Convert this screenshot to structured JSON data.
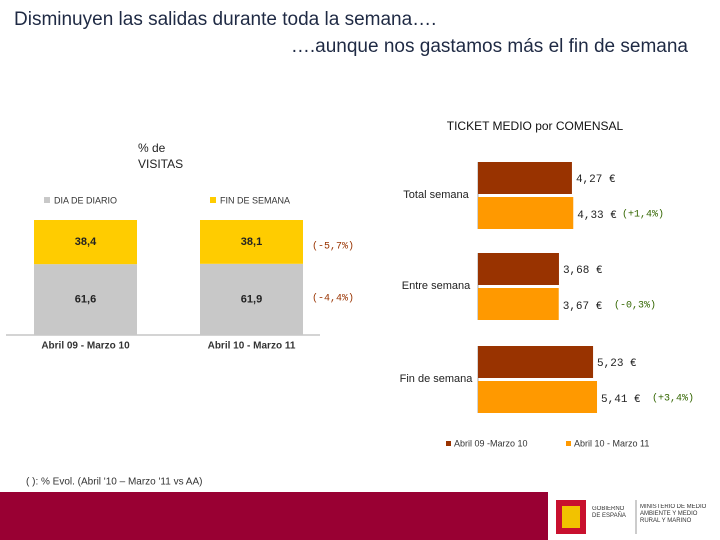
{
  "header": {
    "title_line1": "Disminuyen las salidas durante toda la semana….",
    "title_line2": "….aunque nos gastamos más el fin de semana"
  },
  "chart_data": [
    {
      "type": "stacked-bar",
      "axis_label": "% de VISITAS",
      "categories": [
        "Abril 09 - Marzo 10",
        "Abril 10 - Marzo 11"
      ],
      "ylim": [
        0,
        100
      ],
      "series": [
        {
          "name": "DIA DE DIARIO",
          "color": "#c8c8c8",
          "values": [
            61.6,
            61.9
          ],
          "value_labels": [
            "61,6",
            "61,9"
          ]
        },
        {
          "name": "FIN DE SEMANA",
          "color": "#ffcc00",
          "values": [
            38.4,
            38.1
          ],
          "value_labels": [
            "38,4",
            "38,1"
          ]
        }
      ],
      "annotations": [
        "(-5,7%)",
        "(-4,4%)"
      ]
    },
    {
      "type": "hbar",
      "title": "TICKET MEDIO por COMENSAL",
      "categories": [
        "Total semana",
        "Entre semana",
        "Fin de semana"
      ],
      "xlim": [
        0,
        6
      ],
      "series": [
        {
          "name": "Abril 09 -Marzo 10",
          "color": "#993300",
          "values": [
            4.27,
            3.68,
            5.23
          ],
          "value_labels": [
            "4,27 €",
            "3,68 €",
            "5,23 €"
          ]
        },
        {
          "name": "Abril 10 - Marzo 11",
          "color": "#ff9900",
          "values": [
            4.33,
            3.67,
            5.41
          ],
          "value_labels": [
            "4,33 €",
            "3,67 €",
            "5,41 €"
          ]
        }
      ],
      "annotations": [
        "(+1,4%)",
        "(-0,3%)",
        "(+3,4%)"
      ]
    }
  ],
  "footnote": "( ): % Evol. (Abril '10 – Marzo '11 vs AA)",
  "footer": {
    "logo1": "GOBIERNO DE ESPAÑA",
    "logo2": "MINISTERIO DE MEDIO AMBIENTE Y MEDIO RURAL Y MARINO"
  }
}
